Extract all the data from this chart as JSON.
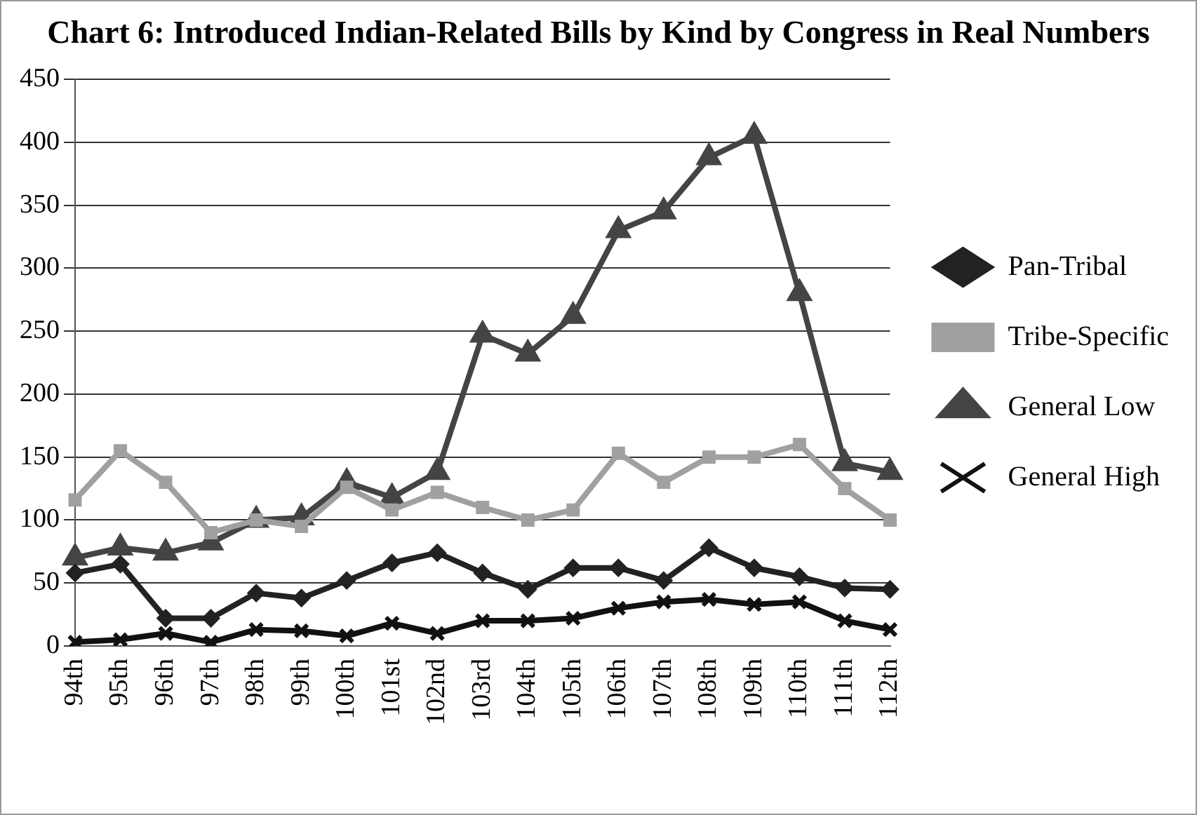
{
  "chart_data": {
    "type": "line",
    "title": "Chart 6: Introduced Indian-Related Bills by Kind by Congress in Real Numbers",
    "categories": [
      "94th",
      "95th",
      "96th",
      "97th",
      "98th",
      "99th",
      "100th",
      "101st",
      "102nd",
      "103rd",
      "104th",
      "105th",
      "106th",
      "107th",
      "108th",
      "109th",
      "110th",
      "111th",
      "112th"
    ],
    "series": [
      {
        "name": "Pan-Tribal",
        "color": "#222222",
        "marker": "diamond",
        "values": [
          58,
          65,
          22,
          22,
          42,
          38,
          52,
          66,
          74,
          58,
          45,
          62,
          62,
          52,
          78,
          62,
          55,
          46,
          45
        ]
      },
      {
        "name": "Tribe-Specific",
        "color": "#a0a0a0",
        "marker": "square",
        "values": [
          116,
          155,
          130,
          90,
          100,
          95,
          126,
          108,
          122,
          110,
          100,
          108,
          153,
          130,
          150,
          150,
          160,
          125,
          100
        ]
      },
      {
        "name": "General Low",
        "color": "#444444",
        "marker": "triangle",
        "values": [
          70,
          78,
          74,
          82,
          100,
          102,
          130,
          118,
          138,
          247,
          232,
          262,
          330,
          345,
          388,
          405,
          280,
          145,
          138
        ]
      },
      {
        "name": "General High",
        "color": "#111111",
        "marker": "cross",
        "values": [
          3,
          5,
          10,
          3,
          13,
          12,
          8,
          18,
          10,
          20,
          20,
          22,
          30,
          35,
          37,
          33,
          35,
          20,
          13
        ]
      }
    ],
    "ylim": [
      0,
      450
    ],
    "yticks": [
      0,
      50,
      100,
      150,
      200,
      250,
      300,
      350,
      400,
      450
    ],
    "grid": "y",
    "legend": "right",
    "line_style": "solid"
  }
}
